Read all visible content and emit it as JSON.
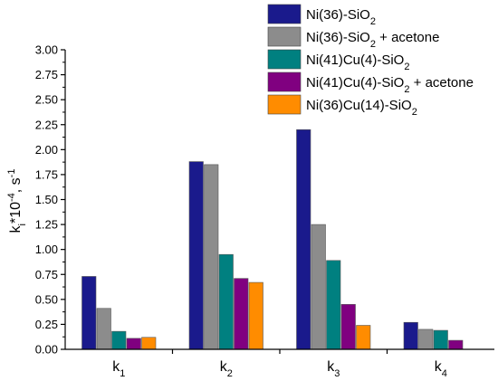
{
  "chart_data": {
    "type": "bar",
    "title": "",
    "xlabel": "",
    "ylabel": {
      "base": "k",
      "sub": "i",
      "mid": "*10",
      "sup": "-4",
      "end": ", s",
      "sup2": "-1"
    },
    "ylim": [
      0,
      3.0
    ],
    "yticks": [
      "0.00",
      "0.25",
      "0.50",
      "0.75",
      "1.00",
      "1.25",
      "1.50",
      "1.75",
      "2.00",
      "2.25",
      "2.50",
      "2.75",
      "3.00"
    ],
    "categories": [
      {
        "base": "k",
        "sub": "1"
      },
      {
        "base": "k",
        "sub": "2"
      },
      {
        "base": "k",
        "sub": "3"
      },
      {
        "base": "k",
        "sub": "4"
      }
    ],
    "series": [
      {
        "name": {
          "pre": "Ni(36)-SiO",
          "sub": "2",
          "post": ""
        },
        "color": "#1a1a8c",
        "values": [
          0.73,
          1.88,
          2.2,
          0.27
        ]
      },
      {
        "name": {
          "pre": "Ni(36)-SiO",
          "sub": "2",
          "post": " + acetone"
        },
        "color": "#8c8c8c",
        "values": [
          0.41,
          1.85,
          1.25,
          0.2
        ]
      },
      {
        "name": {
          "pre": "Ni(41)Cu(4)-SiO",
          "sub": "2",
          "post": ""
        },
        "color": "#008080",
        "values": [
          0.18,
          0.95,
          0.89,
          0.19
        ]
      },
      {
        "name": {
          "pre": "Ni(41)Cu(4)-SiO",
          "sub": "2",
          "post": " + acetone"
        },
        "color": "#800080",
        "values": [
          0.11,
          0.71,
          0.45,
          0.09
        ]
      },
      {
        "name": {
          "pre": "Ni(36)Cu(14)-SiO",
          "sub": "2",
          "post": ""
        },
        "color": "#ff8c00",
        "values": [
          0.12,
          0.67,
          0.24,
          null
        ]
      }
    ],
    "grid": false,
    "legend": "top-right"
  }
}
